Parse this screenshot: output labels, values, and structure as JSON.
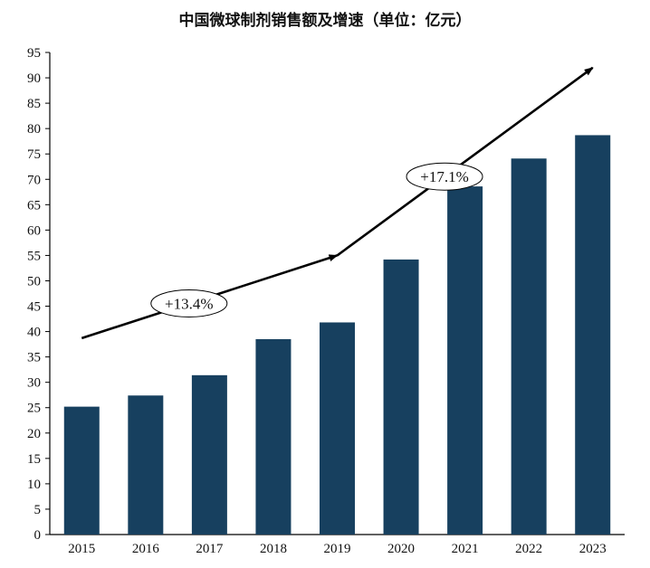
{
  "chart_data": {
    "type": "bar",
    "title": "中国微球制剂销售额及增速（单位：亿元）",
    "categories": [
      "2015",
      "2016",
      "2017",
      "2018",
      "2019",
      "2020",
      "2021",
      "2022",
      "2023"
    ],
    "values": [
      25.2,
      27.4,
      31.4,
      38.5,
      41.8,
      54.2,
      68.6,
      74.1,
      78.7
    ],
    "ylim": [
      0,
      95
    ],
    "ytick_step": 5,
    "grid": false,
    "bar_color": "#17405F",
    "annotations": [
      {
        "label": "+13.4%",
        "from": {
          "x": "2015",
          "y": 38.7
        },
        "to": {
          "x": "2019",
          "y": 55
        }
      },
      {
        "label": "+17.1%",
        "from": {
          "x": "2019",
          "y": 55
        },
        "to": {
          "x": "2023",
          "y": 92
        }
      }
    ]
  }
}
